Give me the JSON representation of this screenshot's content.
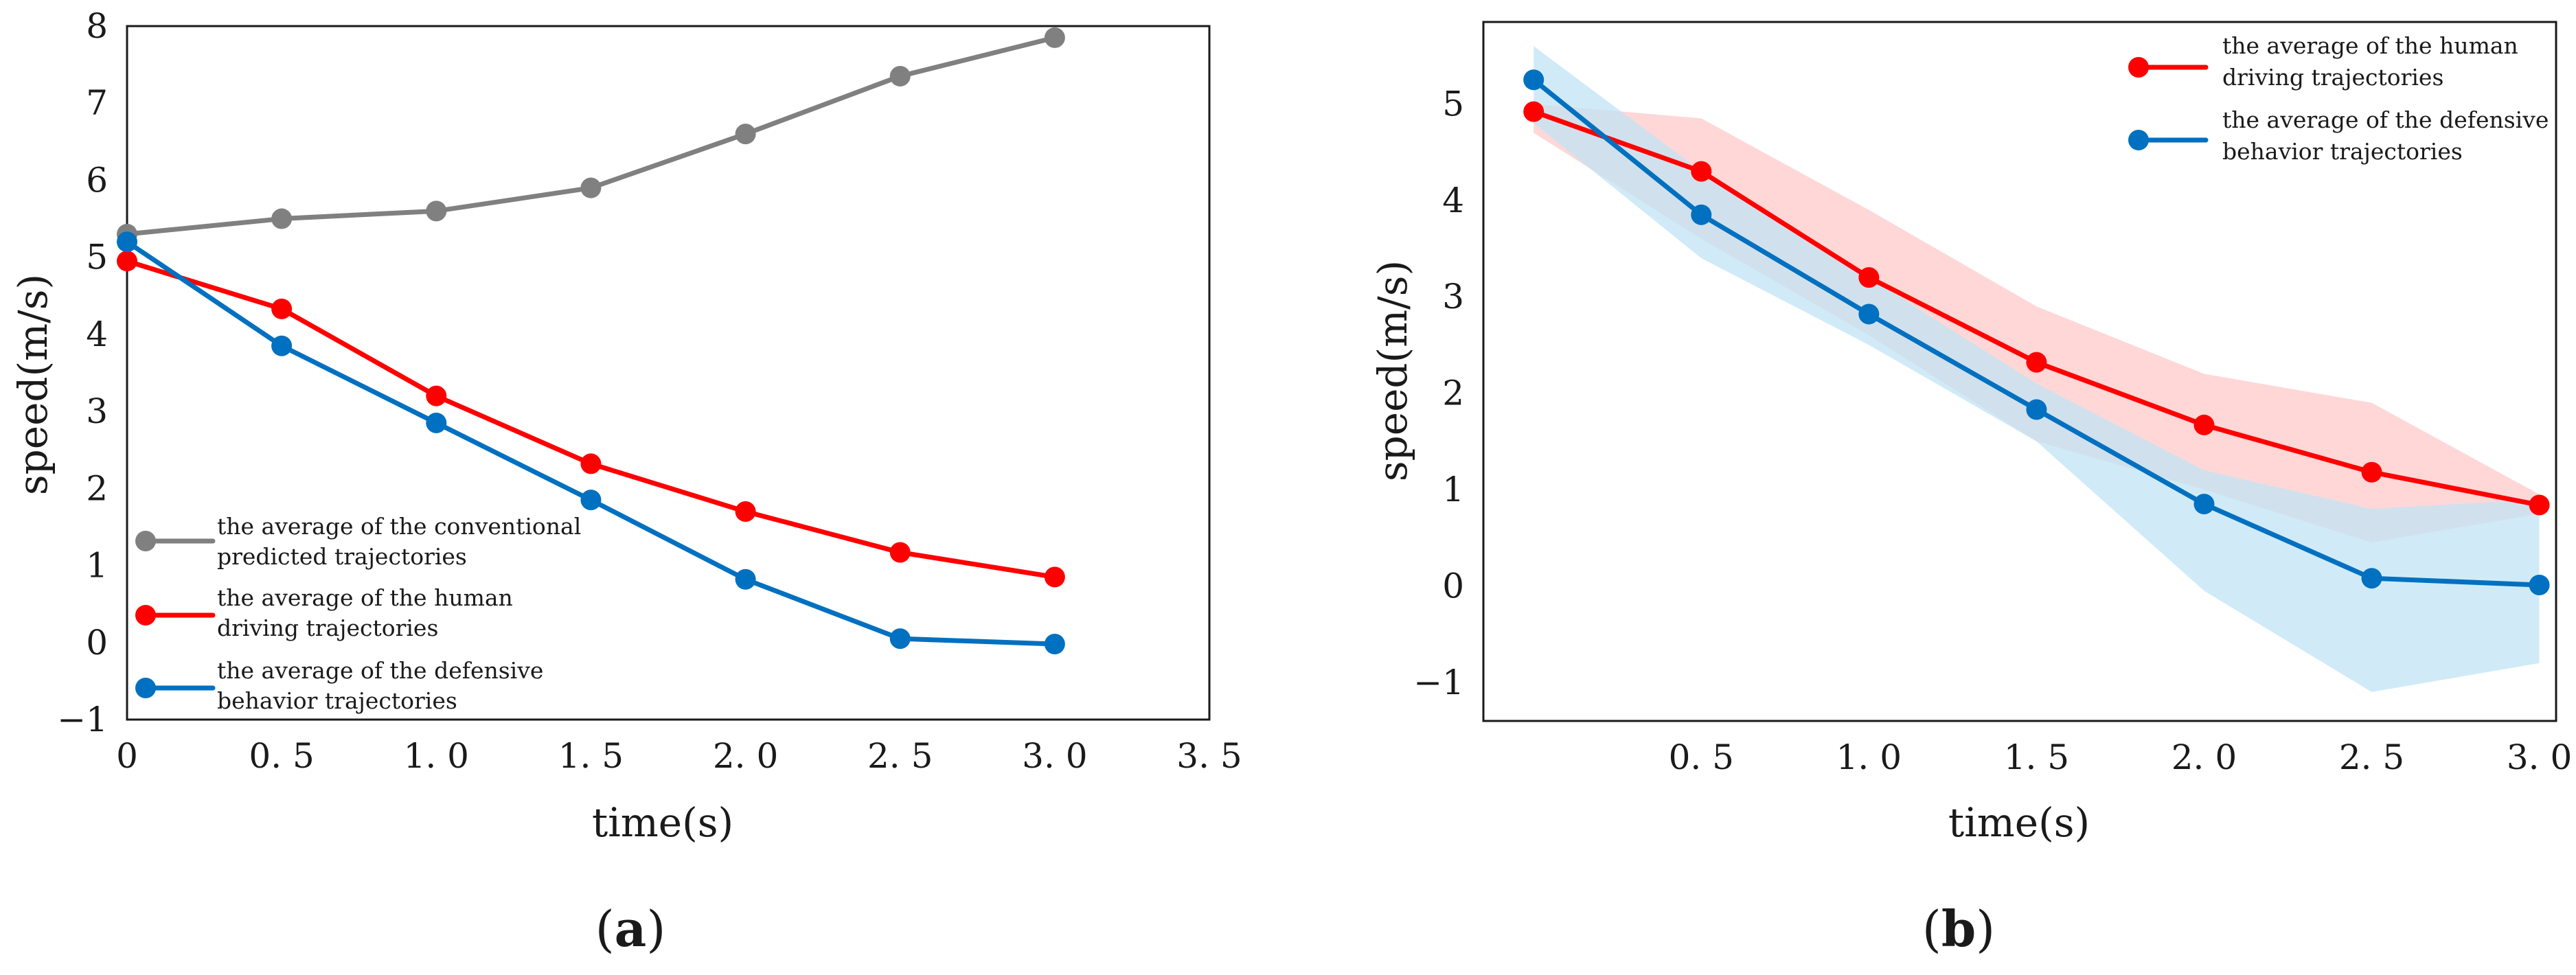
{
  "figure": {
    "panel_a_label": {
      "open": "(",
      "letter": "a",
      "close": ")"
    },
    "panel_b_label": {
      "open": "(",
      "letter": "b",
      "close": ")"
    }
  },
  "colors": {
    "conventional": "#808080",
    "human": "#ff0000",
    "defensive": "#0070c0",
    "human_band": "#ffd0d0",
    "defensive_band": "#c0e4f4",
    "axes": "#1a1a1a"
  },
  "chart_data": [
    {
      "id": "a",
      "type": "line",
      "title": "",
      "xlabel": "time(s)",
      "ylabel": "speed(m/s)",
      "xlim": [
        0,
        3.5
      ],
      "ylim": [
        -1,
        8
      ],
      "xticks": [
        0,
        0.5,
        1.0,
        1.5,
        2.0,
        2.5,
        3.0,
        3.5
      ],
      "xtick_labels": [
        "0",
        "0. 5",
        "1. 0",
        "1. 5",
        "2. 0",
        "2. 5",
        "3. 0",
        "3. 5"
      ],
      "yticks": [
        -1,
        0,
        1,
        2,
        3,
        4,
        5,
        6,
        7,
        8
      ],
      "ytick_labels": [
        "−1",
        "0",
        "1",
        "2",
        "3",
        "4",
        "5",
        "6",
        "7",
        "8"
      ],
      "legend_position": "bottom-left",
      "series": [
        {
          "name": "the average of the conventional predicted trajectories",
          "legend_lines": [
            "the average of the conventional",
            "predicted trajectories"
          ],
          "color": "#808080",
          "x": [
            0,
            0.5,
            1.0,
            1.5,
            2.0,
            2.5,
            3.0
          ],
          "values": [
            5.3,
            5.5,
            5.6,
            5.9,
            6.6,
            7.35,
            7.85
          ]
        },
        {
          "name": "the average of the human driving trajectories",
          "legend_lines": [
            "the average of the human",
            "driving trajectories"
          ],
          "color": "#ff0000",
          "x": [
            0,
            0.5,
            1.0,
            1.5,
            2.0,
            2.5,
            3.0
          ],
          "values": [
            4.95,
            4.33,
            3.2,
            2.32,
            1.7,
            1.17,
            0.85
          ]
        },
        {
          "name": "the average of the defensive behavior trajectories",
          "legend_lines": [
            "the average of the defensive",
            "behavior trajectories"
          ],
          "color": "#0070c0",
          "x": [
            0,
            0.5,
            1.0,
            1.5,
            2.0,
            2.5,
            3.0
          ],
          "values": [
            5.2,
            3.85,
            2.85,
            1.85,
            0.82,
            0.05,
            -0.02
          ]
        }
      ]
    },
    {
      "id": "b",
      "type": "line",
      "title": "",
      "xlabel": "time(s)",
      "ylabel": "speed(m/s)",
      "xlim": [
        -0.15,
        3.05
      ],
      "ylim": [
        -1.4,
        5.85
      ],
      "xticks": [
        0.5,
        1.0,
        1.5,
        2.0,
        2.5,
        3.0
      ],
      "xtick_labels": [
        "0. 5",
        "1. 0",
        "1. 5",
        "2. 0",
        "2. 5",
        "3. 0"
      ],
      "yticks": [
        -1,
        0,
        1,
        2,
        3,
        4,
        5
      ],
      "ytick_labels": [
        "−1",
        "0",
        "1",
        "2",
        "3",
        "4",
        "5"
      ],
      "legend_position": "top-right",
      "series": [
        {
          "name": "the average of the human driving trajectories",
          "legend_lines": [
            "the average of the human",
            "driving trajectories"
          ],
          "color": "#ff0000",
          "band_color": "#ffd0d0",
          "x": [
            0,
            0.5,
            1.0,
            1.5,
            2.0,
            2.5,
            3.0
          ],
          "values": [
            4.92,
            4.3,
            3.2,
            2.32,
            1.67,
            1.18,
            0.84
          ],
          "band_upper": [
            5.0,
            4.85,
            3.9,
            2.9,
            2.2,
            1.9,
            0.95
          ],
          "band_lower": [
            4.7,
            3.6,
            2.6,
            1.5,
            1.0,
            0.45,
            0.75
          ]
        },
        {
          "name": "the average of the defensive behavior trajectories",
          "legend_lines": [
            "the average of the defensive",
            "behavior trajectories"
          ],
          "color": "#0070c0",
          "band_color": "#c0e4f4",
          "x": [
            0,
            0.5,
            1.0,
            1.5,
            2.0,
            2.5,
            3.0
          ],
          "values": [
            5.25,
            3.85,
            2.82,
            1.83,
            0.85,
            0.08,
            0.01
          ],
          "band_upper": [
            5.6,
            4.3,
            3.2,
            2.1,
            1.2,
            0.8,
            0.9
          ],
          "band_lower": [
            4.8,
            3.4,
            2.5,
            1.5,
            -0.05,
            -1.1,
            -0.8
          ]
        }
      ]
    }
  ]
}
